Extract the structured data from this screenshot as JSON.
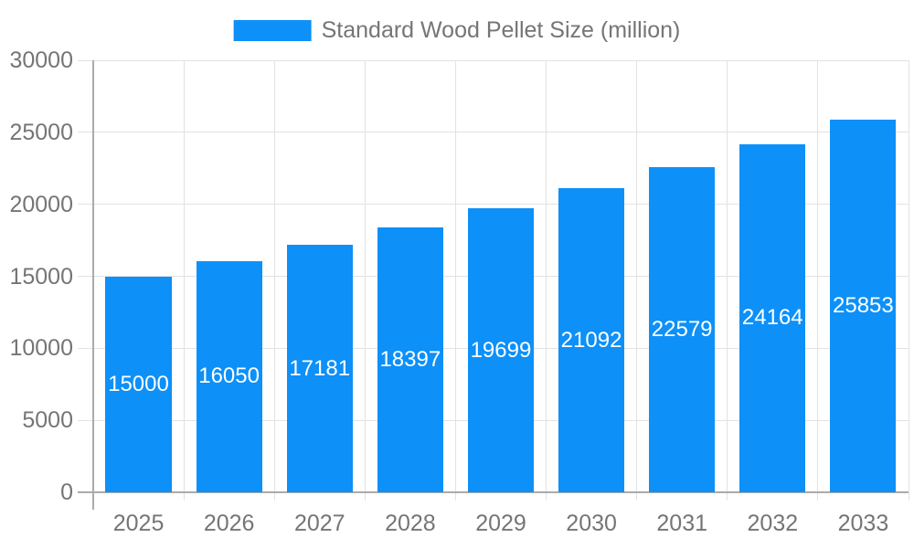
{
  "legend": {
    "label": "Standard Wood Pellet Size (million)"
  },
  "colors": {
    "bar": "#0d90f8",
    "text": "#757575",
    "grid": "#e2e2e2",
    "axis": "#ababab",
    "value_label": "#ffffff",
    "background": "#ffffff"
  },
  "chart_data": {
    "type": "bar",
    "title": "Standard Wood Pellet Size (million)",
    "categories": [
      "2025",
      "2026",
      "2027",
      "2028",
      "2029",
      "2030",
      "2031",
      "2032",
      "2033"
    ],
    "values": [
      15000,
      16050,
      17181,
      18397,
      19699,
      21092,
      22579,
      24164,
      25853
    ],
    "xlabel": "",
    "ylabel": "",
    "ylim": [
      0,
      30000
    ],
    "yticks": [
      0,
      5000,
      10000,
      15000,
      20000,
      25000,
      30000
    ],
    "grid": true,
    "legend_position": "top",
    "value_label_position": "inside-center"
  }
}
